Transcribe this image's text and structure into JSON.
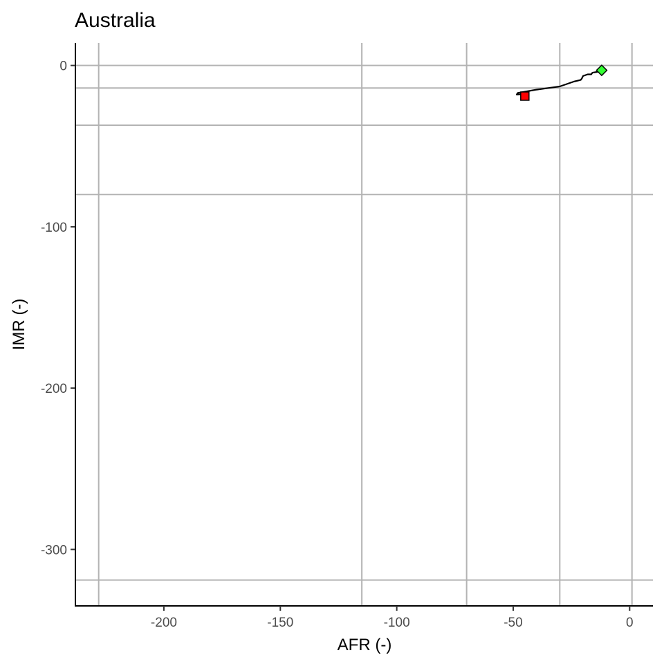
{
  "chart_data": {
    "type": "line",
    "title": "Australia",
    "xlabel": "AFR (-)",
    "ylabel": "IMR (-)",
    "xlim": [
      -238,
      10
    ],
    "ylim": [
      -335,
      14
    ],
    "x_ticks": [
      -200,
      -150,
      -100,
      -50,
      0
    ],
    "x_tick_labels": [
      "-200",
      "-150",
      "-100",
      "-50",
      "0"
    ],
    "y_ticks": [
      0,
      -100,
      -200,
      -300
    ],
    "y_tick_labels": [
      "0",
      "-100",
      "-200",
      "-300"
    ],
    "grid": false,
    "reference_lines": {
      "vertical_x": [
        -228,
        -115,
        -70,
        -30,
        1
      ],
      "horizontal_y": [
        0,
        -14,
        -37,
        -80,
        -319
      ]
    },
    "series": [
      {
        "x": [
          -45,
          -46,
          -48.5,
          -48,
          -44,
          -40,
          -35,
          -30,
          -27,
          -24,
          -21,
          -20.5,
          -20,
          -18,
          -16.5,
          -16,
          -14,
          -13,
          -12
        ],
        "y": [
          -17.5,
          -17.8,
          -18,
          -17,
          -16,
          -15,
          -14,
          -13,
          -11.5,
          -10,
          -9,
          -8,
          -6.5,
          -5.5,
          -5.5,
          -4.5,
          -4,
          -3.5,
          -3
        ],
        "color": "#000000"
      }
    ],
    "markers": [
      {
        "shape": "square",
        "x": -45,
        "y": -19,
        "fill": "#ff0000"
      },
      {
        "shape": "diamond",
        "x": -12,
        "y": -3,
        "fill": "#33ff33"
      }
    ]
  }
}
